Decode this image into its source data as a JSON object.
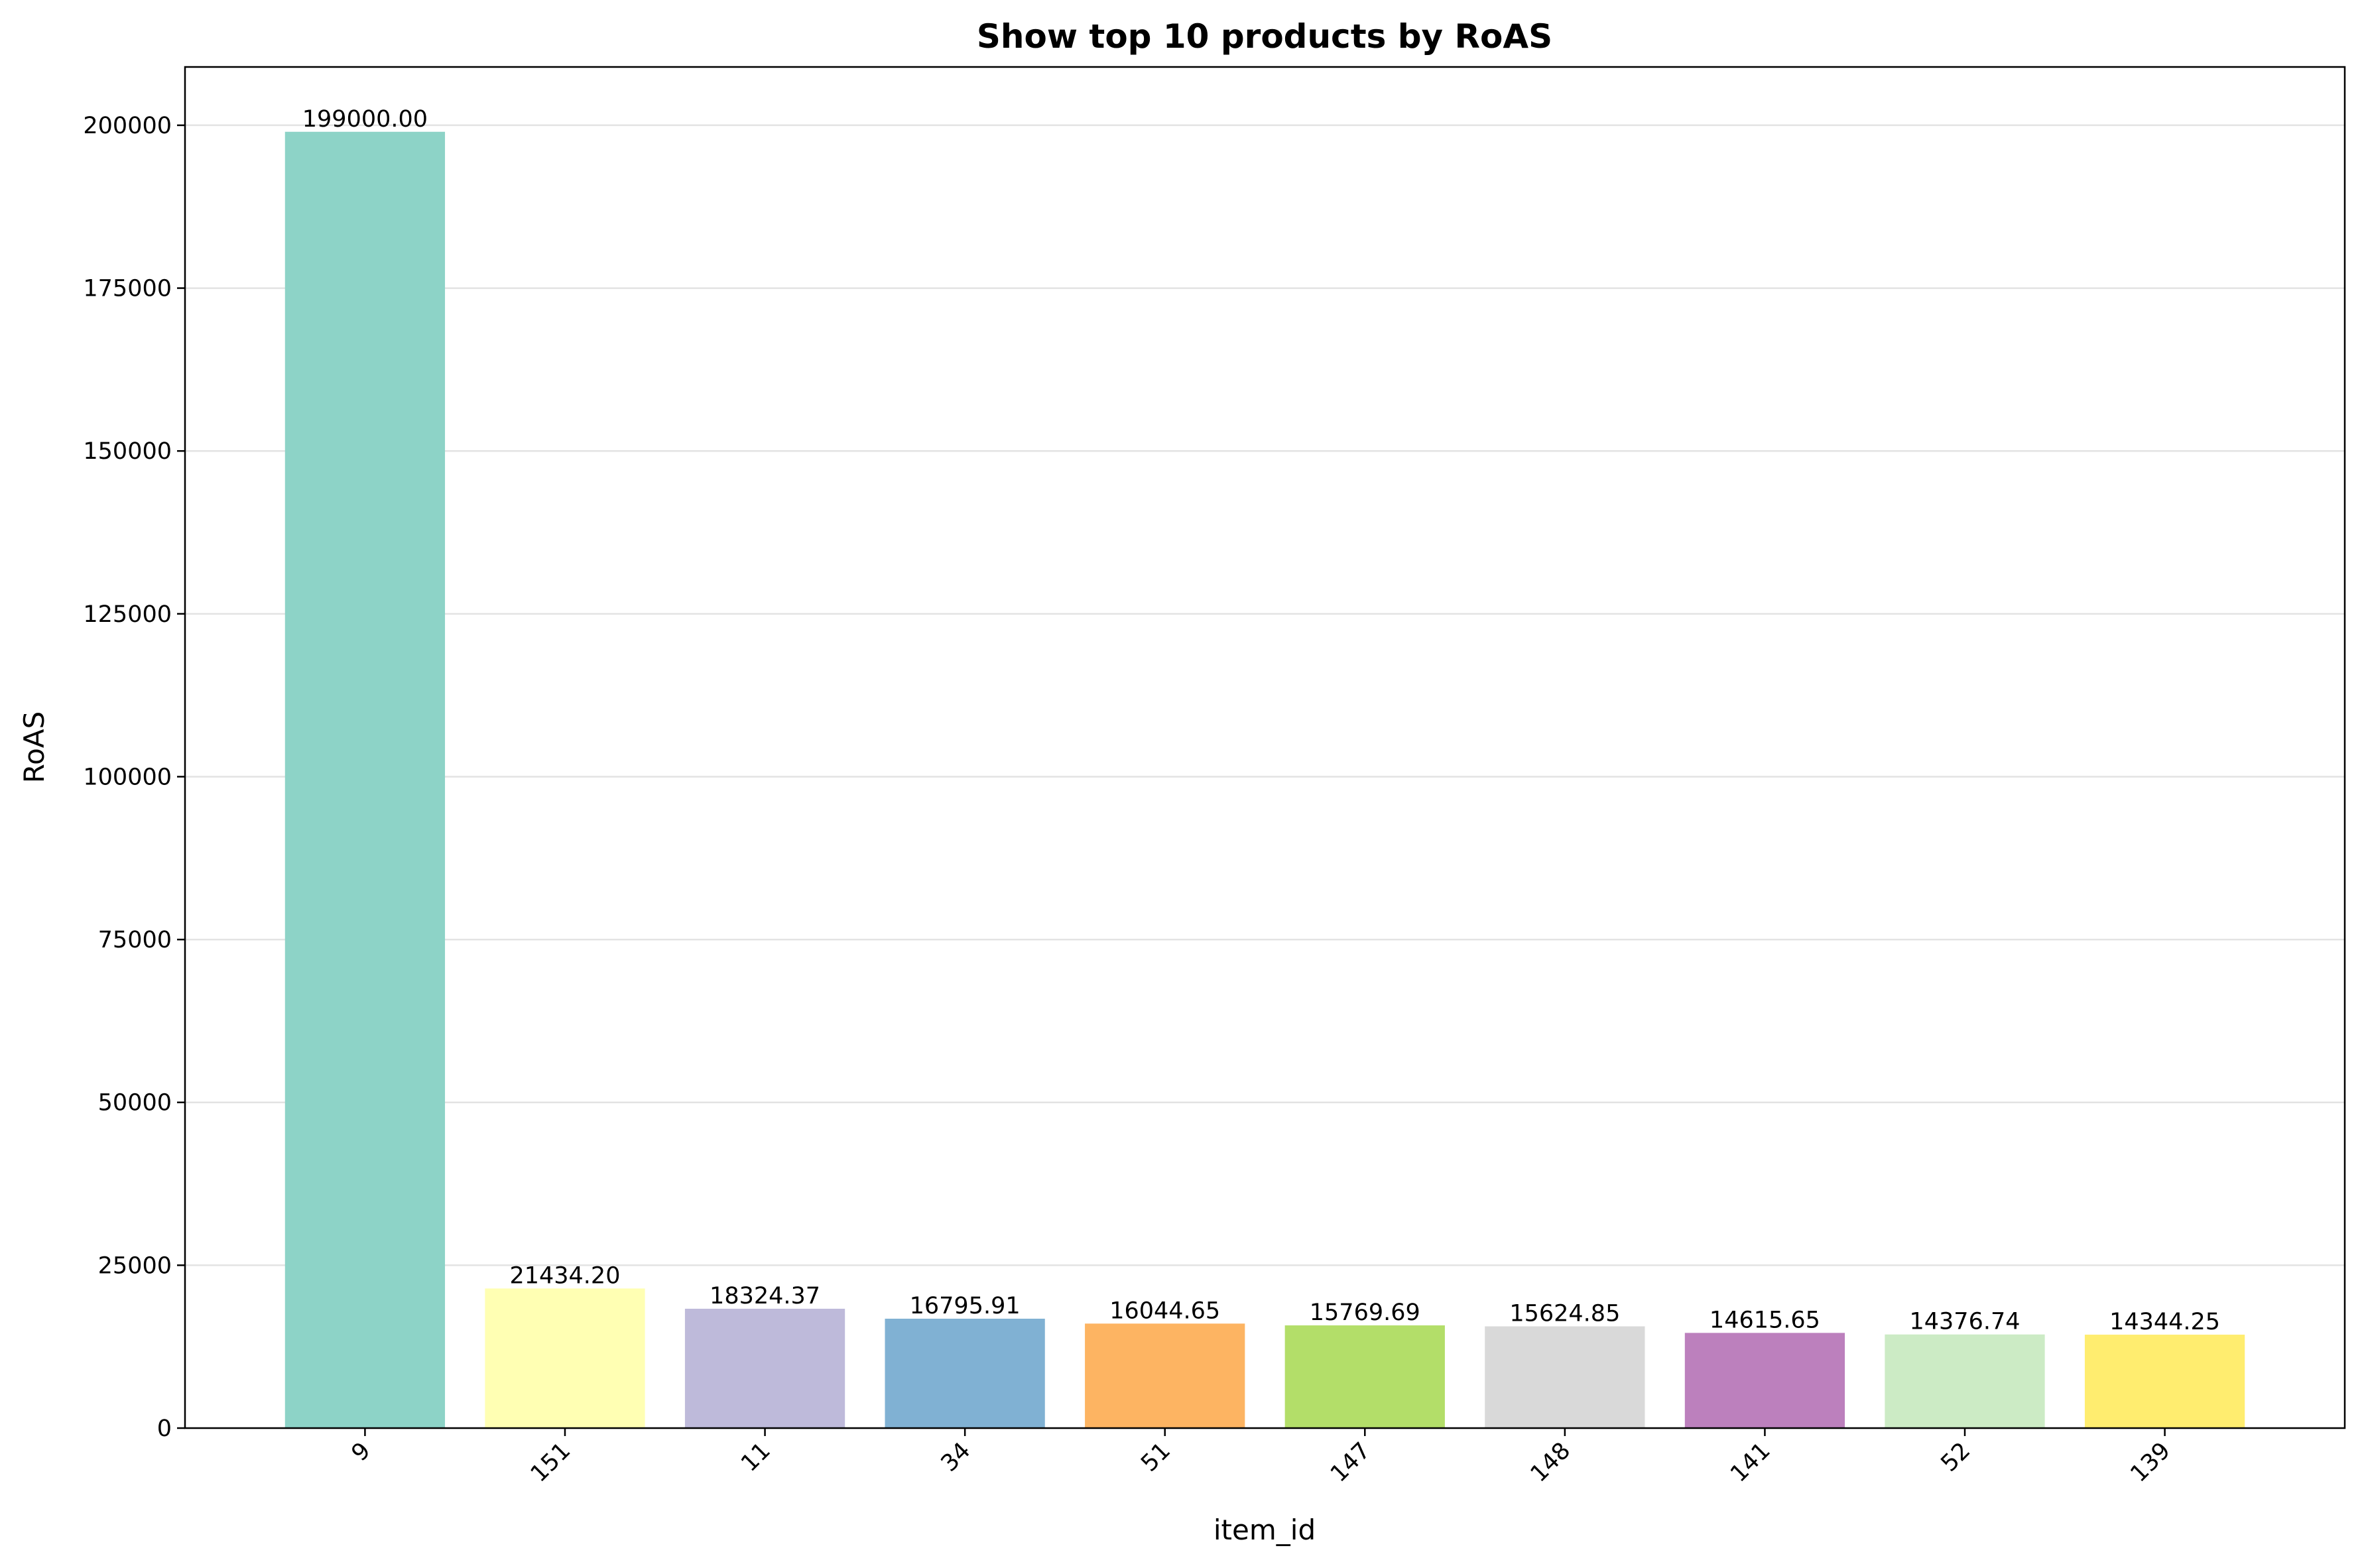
{
  "chart_data": {
    "type": "bar",
    "title": "Show top 10 products by RoAS",
    "xlabel": "item_id",
    "ylabel": "RoAS",
    "categories": [
      "9",
      "151",
      "11",
      "34",
      "51",
      "147",
      "148",
      "141",
      "52",
      "139"
    ],
    "values": [
      199000.0,
      21434.2,
      18324.37,
      16795.91,
      16044.65,
      15769.69,
      15624.85,
      14615.65,
      14376.74,
      14344.25
    ],
    "value_labels": [
      "199000.00",
      "21434.20",
      "18324.37",
      "16795.91",
      "16044.65",
      "15769.69",
      "15624.85",
      "14615.65",
      "14376.74",
      "14344.25"
    ],
    "colors": [
      "#8dd3c7",
      "#ffffb3",
      "#bebada",
      "#80b1d3",
      "#fdb462",
      "#b3de69",
      "#d9d9d9",
      "#bc80bd",
      "#ccebc5",
      "#ffed6f"
    ],
    "ylim": [
      0,
      208950
    ],
    "yticks": [
      0,
      25000,
      50000,
      75000,
      100000,
      125000,
      150000,
      175000,
      200000
    ],
    "grid": "y",
    "legend": "none"
  }
}
